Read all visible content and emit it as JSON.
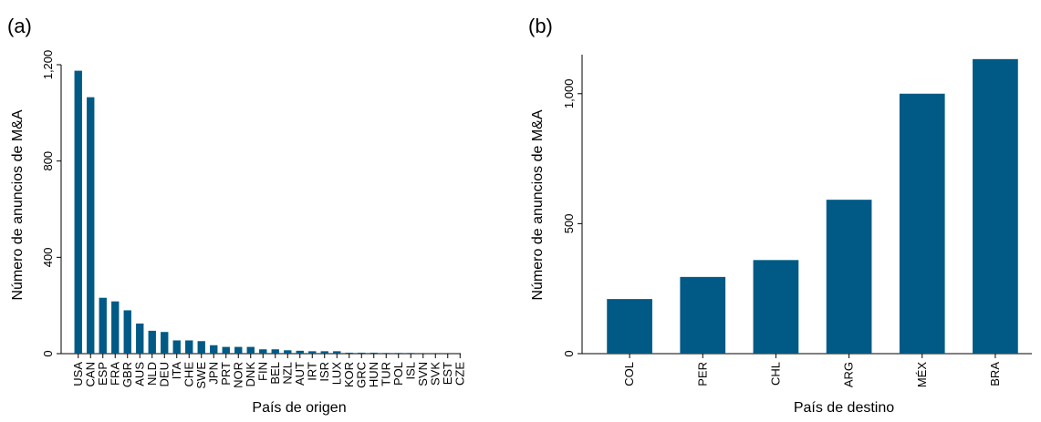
{
  "chart_data": [
    {
      "type": "bar",
      "panel_label": "(a)",
      "title": "",
      "xlabel": "País de origen",
      "ylabel": "Número de anuncios de M&A",
      "ylim": [
        0,
        1200
      ],
      "yticks": [
        0,
        400,
        800,
        1200
      ],
      "ytick_labels": [
        "0",
        "400",
        "800",
        "1,200"
      ],
      "grid": false,
      "bar_color": "#005a85",
      "categories": [
        "USA",
        "CAN",
        "ESP",
        "FRA",
        "GBR",
        "AUS",
        "NLD",
        "DEU",
        "ITA",
        "CHE",
        "SWE",
        "JPN",
        "PRT",
        "NOR",
        "DNK",
        "FIN",
        "BEL",
        "NZL",
        "AUT",
        "IRT",
        "ISR",
        "LUX",
        "KOR",
        "GRC",
        "HUN",
        "TUR",
        "POL",
        "ISL",
        "SVN",
        "SVK",
        "EST",
        "CZE"
      ],
      "values": [
        1175,
        1065,
        232,
        217,
        180,
        125,
        95,
        90,
        55,
        55,
        52,
        35,
        28,
        28,
        28,
        18,
        18,
        14,
        12,
        10,
        10,
        10,
        4,
        4,
        4,
        3,
        3,
        3,
        0,
        0,
        0,
        0
      ]
    },
    {
      "type": "bar",
      "panel_label": "(b)",
      "title": "",
      "xlabel": "País de destino",
      "ylabel": "Número de anuncios de M&A",
      "ylim": [
        0,
        1150
      ],
      "yticks": [
        0,
        500,
        1000
      ],
      "ytick_labels": [
        "0",
        "500",
        "1,000"
      ],
      "grid": false,
      "bar_color": "#005a85",
      "categories": [
        "COL",
        "PER",
        "CHL",
        "ARG",
        "MÉX",
        "BRA"
      ],
      "values": [
        210,
        295,
        360,
        592,
        1000,
        1133
      ]
    }
  ]
}
